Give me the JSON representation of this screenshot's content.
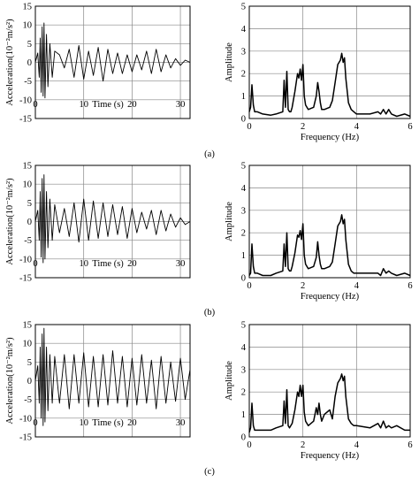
{
  "chart_data": [
    {
      "panel": "(a)",
      "left": {
        "type": "line",
        "xlabel": "Time (s)",
        "ylabel": "Acceleration(10⁻²m/s²)",
        "xlim": [
          0,
          32
        ],
        "ylim": [
          -15,
          15
        ],
        "xticks": [
          0,
          10,
          20,
          30
        ],
        "yticks": [
          -15,
          -10,
          -5,
          0,
          5,
          10,
          15
        ],
        "grid": true,
        "x": [
          0.0,
          0.5,
          0.8,
          1.0,
          1.2,
          1.4,
          1.6,
          1.8,
          2.0,
          2.3,
          2.6,
          3.0,
          3.5,
          4.0,
          5.0,
          6.0,
          7.0,
          8.0,
          9.0,
          10.0,
          11.0,
          12.0,
          13.0,
          14.0,
          15.0,
          16.0,
          17.0,
          18.0,
          19.0,
          20.0,
          21.0,
          22.0,
          23.0,
          24.0,
          25.0,
          26.0,
          27.0,
          28.0,
          29.0,
          30.0,
          31.0,
          32.0
        ],
        "y": [
          0.0,
          2.5,
          -4.0,
          6.5,
          -8.0,
          9.5,
          -9.0,
          10.5,
          -9.5,
          7.5,
          -6.5,
          5.0,
          -4.0,
          3.0,
          2.0,
          -1.5,
          3.5,
          -4.0,
          4.5,
          -4.5,
          3.0,
          -3.5,
          4.0,
          -5.0,
          3.5,
          -3.0,
          2.5,
          -3.0,
          2.0,
          -2.5,
          2.0,
          -2.0,
          3.0,
          -3.0,
          3.5,
          -2.5,
          2.0,
          -1.5,
          1.0,
          -0.8,
          0.6,
          0.0
        ]
      },
      "right": {
        "type": "line",
        "xlabel": "Frequency (Hz)",
        "ylabel": "Amplitude",
        "xlim": [
          0,
          6
        ],
        "ylim": [
          0,
          5
        ],
        "xticks": [
          0,
          2,
          4,
          6
        ],
        "yticks": [
          0,
          1,
          2,
          3,
          4,
          5
        ],
        "grid": true,
        "x": [
          0.0,
          0.05,
          0.1,
          0.15,
          0.2,
          0.3,
          0.5,
          0.8,
          1.0,
          1.25,
          1.3,
          1.35,
          1.4,
          1.45,
          1.5,
          1.55,
          1.6,
          1.7,
          1.8,
          1.85,
          1.9,
          1.95,
          2.0,
          2.05,
          2.1,
          2.2,
          2.4,
          2.5,
          2.55,
          2.6,
          2.65,
          2.7,
          2.8,
          3.0,
          3.1,
          3.2,
          3.3,
          3.4,
          3.45,
          3.5,
          3.55,
          3.6,
          3.7,
          3.8,
          3.9,
          4.0,
          4.5,
          4.8,
          4.9,
          5.0,
          5.1,
          5.2,
          5.3,
          5.5,
          5.8,
          6.0
        ],
        "y": [
          0.3,
          0.5,
          1.5,
          0.6,
          0.3,
          0.3,
          0.2,
          0.15,
          0.2,
          0.3,
          1.7,
          0.5,
          2.1,
          0.4,
          0.3,
          0.3,
          0.5,
          1.2,
          2.0,
          1.8,
          2.2,
          1.7,
          2.4,
          1.0,
          0.6,
          0.4,
          0.5,
          1.0,
          1.6,
          1.2,
          0.7,
          0.4,
          0.4,
          0.5,
          0.8,
          1.6,
          2.4,
          2.6,
          2.9,
          2.5,
          2.7,
          1.8,
          0.7,
          0.4,
          0.3,
          0.2,
          0.2,
          0.3,
          0.2,
          0.4,
          0.2,
          0.4,
          0.2,
          0.1,
          0.2,
          0.1
        ]
      }
    },
    {
      "panel": "(b)",
      "left": {
        "type": "line",
        "xlabel": "Time (s)",
        "ylabel": "Acceleration(10⁻²m/s²)",
        "xlim": [
          0,
          32
        ],
        "ylim": [
          -15,
          15
        ],
        "xticks": [
          0,
          10,
          20,
          30
        ],
        "yticks": [
          -15,
          -10,
          -5,
          0,
          5,
          10,
          15
        ],
        "grid": true,
        "x": [
          0.0,
          0.5,
          0.8,
          1.0,
          1.2,
          1.4,
          1.6,
          1.8,
          2.0,
          2.3,
          2.6,
          3.0,
          3.5,
          4.0,
          5.0,
          6.0,
          7.0,
          8.0,
          9.0,
          10.0,
          11.0,
          12.0,
          13.0,
          14.0,
          15.0,
          16.0,
          17.0,
          18.0,
          19.0,
          20.0,
          21.0,
          22.0,
          23.0,
          24.0,
          25.0,
          26.0,
          27.0,
          28.0,
          29.0,
          30.0,
          31.0,
          32.0
        ],
        "y": [
          0.0,
          3.0,
          -5.0,
          8.0,
          -9.5,
          11.5,
          -11.0,
          12.5,
          -10.0,
          8.0,
          -7.0,
          6.0,
          -5.0,
          4.5,
          -3.0,
          3.5,
          -4.0,
          5.0,
          -5.5,
          6.0,
          -5.0,
          5.5,
          -4.5,
          5.0,
          -4.0,
          4.5,
          -3.5,
          4.0,
          -4.5,
          3.5,
          -3.0,
          2.5,
          -2.0,
          3.0,
          -3.5,
          3.0,
          -2.5,
          2.0,
          -1.5,
          1.0,
          -0.8,
          0.0
        ]
      },
      "right": {
        "type": "line",
        "xlabel": "Frequency (Hz)",
        "ylabel": "Amplitude",
        "xlim": [
          0,
          6
        ],
        "ylim": [
          0,
          5
        ],
        "xticks": [
          0,
          2,
          4,
          6
        ],
        "yticks": [
          0,
          1,
          2,
          3,
          4,
          5
        ],
        "grid": true,
        "x": [
          0.0,
          0.05,
          0.1,
          0.15,
          0.2,
          0.3,
          0.5,
          0.8,
          1.0,
          1.25,
          1.3,
          1.35,
          1.4,
          1.45,
          1.5,
          1.55,
          1.6,
          1.7,
          1.8,
          1.85,
          1.9,
          1.95,
          2.0,
          2.05,
          2.1,
          2.2,
          2.4,
          2.5,
          2.55,
          2.6,
          2.65,
          2.7,
          2.8,
          3.0,
          3.1,
          3.2,
          3.3,
          3.4,
          3.45,
          3.5,
          3.55,
          3.6,
          3.7,
          3.8,
          3.9,
          4.0,
          4.5,
          4.8,
          4.9,
          5.0,
          5.1,
          5.2,
          5.3,
          5.5,
          5.8,
          6.0
        ],
        "y": [
          0.1,
          0.2,
          1.5,
          0.5,
          0.2,
          0.2,
          0.1,
          0.1,
          0.2,
          0.3,
          1.5,
          0.5,
          2.0,
          0.4,
          0.3,
          0.3,
          0.5,
          1.1,
          1.9,
          1.8,
          2.1,
          1.7,
          2.4,
          1.0,
          0.6,
          0.4,
          0.5,
          0.9,
          1.6,
          1.0,
          0.6,
          0.4,
          0.4,
          0.5,
          0.7,
          1.5,
          2.3,
          2.5,
          2.8,
          2.4,
          2.6,
          1.7,
          0.6,
          0.3,
          0.2,
          0.2,
          0.2,
          0.2,
          0.1,
          0.4,
          0.2,
          0.3,
          0.2,
          0.1,
          0.2,
          0.1
        ]
      }
    },
    {
      "panel": "(c)",
      "left": {
        "type": "line",
        "xlabel": "Time (s)",
        "ylabel": "Acceleration(10⁻²m/s²)",
        "xlim": [
          0,
          32
        ],
        "ylim": [
          -15,
          15
        ],
        "xticks": [
          0,
          10,
          20,
          30
        ],
        "yticks": [
          -15,
          -10,
          -5,
          0,
          5,
          10,
          15
        ],
        "grid": true,
        "x": [
          0.0,
          0.5,
          0.8,
          1.0,
          1.2,
          1.4,
          1.6,
          1.8,
          2.0,
          2.3,
          2.6,
          3.0,
          3.5,
          4.0,
          5.0,
          6.0,
          7.0,
          8.0,
          9.0,
          10.0,
          11.0,
          12.0,
          13.0,
          14.0,
          15.0,
          16.0,
          17.0,
          18.0,
          19.0,
          20.0,
          21.0,
          22.0,
          23.0,
          24.0,
          25.0,
          26.0,
          27.0,
          28.0,
          29.0,
          30.0,
          31.0,
          32.0
        ],
        "y": [
          0.0,
          4.0,
          -6.0,
          9.0,
          -10.0,
          12.5,
          -12.0,
          14.0,
          -11.0,
          9.0,
          -8.0,
          7.0,
          -6.0,
          6.5,
          -6.0,
          7.0,
          -7.5,
          7.0,
          -6.0,
          7.5,
          -7.0,
          6.5,
          -7.0,
          7.0,
          -6.5,
          8.0,
          -6.0,
          6.5,
          -7.0,
          6.0,
          -6.5,
          7.0,
          -6.0,
          5.5,
          -7.5,
          6.5,
          -6.0,
          5.0,
          -5.5,
          6.0,
          -5.0,
          3.0
        ]
      },
      "right": {
        "type": "line",
        "xlabel": "Frequency (Hz)",
        "ylabel": "Amplitude",
        "xlim": [
          0,
          6
        ],
        "ylim": [
          0,
          5
        ],
        "xticks": [
          0,
          2,
          4,
          6
        ],
        "yticks": [
          0,
          1,
          2,
          3,
          4,
          5
        ],
        "grid": true,
        "x": [
          0.0,
          0.05,
          0.1,
          0.15,
          0.2,
          0.3,
          0.5,
          0.8,
          1.0,
          1.25,
          1.3,
          1.35,
          1.4,
          1.45,
          1.5,
          1.55,
          1.6,
          1.7,
          1.8,
          1.85,
          1.9,
          1.95,
          2.0,
          2.05,
          2.1,
          2.2,
          2.4,
          2.5,
          2.55,
          2.6,
          2.65,
          2.7,
          2.8,
          3.0,
          3.1,
          3.2,
          3.3,
          3.4,
          3.45,
          3.5,
          3.55,
          3.6,
          3.7,
          3.8,
          3.9,
          4.0,
          4.5,
          4.8,
          4.9,
          5.0,
          5.1,
          5.2,
          5.3,
          5.5,
          5.8,
          6.0
        ],
        "y": [
          0.2,
          0.4,
          1.5,
          0.5,
          0.3,
          0.3,
          0.3,
          0.3,
          0.4,
          0.5,
          1.6,
          0.6,
          2.1,
          0.5,
          0.4,
          0.5,
          0.6,
          1.2,
          2.0,
          1.8,
          2.3,
          1.8,
          2.3,
          1.1,
          0.7,
          0.5,
          0.7,
          1.3,
          1.0,
          1.5,
          1.0,
          0.7,
          1.0,
          1.2,
          0.8,
          1.8,
          2.4,
          2.6,
          2.8,
          2.5,
          2.7,
          1.8,
          0.8,
          0.6,
          0.5,
          0.5,
          0.4,
          0.6,
          0.4,
          0.7,
          0.4,
          0.5,
          0.4,
          0.5,
          0.3,
          0.3
        ]
      }
    }
  ]
}
